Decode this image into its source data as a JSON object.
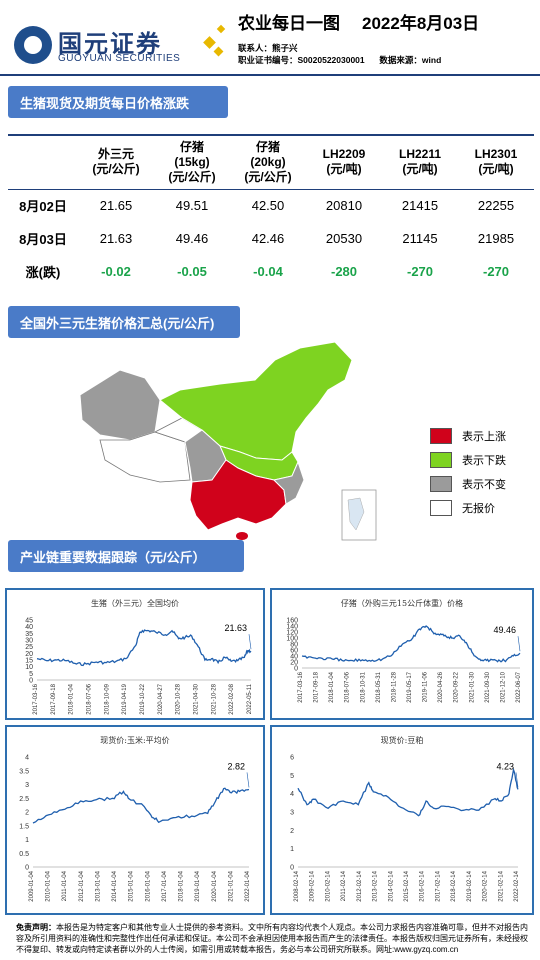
{
  "header": {
    "company_cn": "国元证券",
    "company_en": "GUOYUAN SECURITIES",
    "title": "农业每日一图",
    "date": "2022年8月03日",
    "contact_label": "联系人：",
    "contact": "熊子兴",
    "cert_label": "职业证书编号：",
    "cert": "S0020522030001",
    "source_label": "数据来源：",
    "source": "wind"
  },
  "section1": {
    "title": "生猪现货及期货每日价格涨跌"
  },
  "table": {
    "headers": [
      {
        "lines": [
          "",
          ""
        ]
      },
      {
        "lines": [
          "外三元",
          "(元/公斤)"
        ]
      },
      {
        "lines": [
          "仔猪",
          "(15kg)",
          "(元/公斤)"
        ]
      },
      {
        "lines": [
          "仔猪",
          "(20kg)",
          "(元/公斤)"
        ]
      },
      {
        "lines": [
          "LH2209",
          "(元/吨)"
        ]
      },
      {
        "lines": [
          "LH2211",
          "(元/吨)"
        ]
      },
      {
        "lines": [
          "LH2301",
          "(元/吨)"
        ]
      }
    ],
    "rows": [
      {
        "label": "8月02日",
        "values": [
          "21.65",
          "49.51",
          "42.50",
          "20810",
          "21415",
          "22255"
        ]
      },
      {
        "label": "8月03日",
        "values": [
          "21.63",
          "49.46",
          "42.46",
          "20530",
          "21145",
          "21985"
        ]
      },
      {
        "label": "涨(跌)",
        "values": [
          "-0.02",
          "-0.05",
          "-0.04",
          "-280",
          "-270",
          "-270"
        ]
      }
    ]
  },
  "section2": {
    "title": "全国外三元生猪价格汇总(元/公斤)"
  },
  "map_legend": [
    {
      "label": "表示上涨",
      "color": "#d0021b"
    },
    {
      "label": "表示下跌",
      "color": "#7ed321"
    },
    {
      "label": "表示不变",
      "color": "#9b9b9b"
    },
    {
      "label": "无报价",
      "color": "#ffffff"
    }
  ],
  "section3": {
    "title": "产业链重要数据跟踪（元/公斤）"
  },
  "chart_data": [
    {
      "type": "line",
      "title": "生猪（外三元）全国均价",
      "ylim": [
        0,
        45
      ],
      "yticks": [
        0,
        5,
        10,
        15,
        20,
        25,
        30,
        35,
        40,
        45
      ],
      "xticks": [
        "2017-03-16",
        "2017-09-18",
        "2018-01-04",
        "2018-07-06",
        "2018-10-09",
        "2019-04-19",
        "2019-10-22",
        "2020-04-27",
        "2020-10-28",
        "2021-04-30",
        "2021-10-28",
        "2022-02-08",
        "2022-05-11"
      ],
      "x": [
        "2017-03",
        "2017-06",
        "2017-09",
        "2017-12",
        "2018-03",
        "2018-06",
        "2018-09",
        "2018-12",
        "2019-03",
        "2019-06",
        "2019-09",
        "2019-10",
        "2019-11",
        "2020-01",
        "2020-03",
        "2020-06",
        "2020-08",
        "2020-10",
        "2020-12",
        "2021-02",
        "2021-04",
        "2021-06",
        "2021-08",
        "2021-10",
        "2021-12",
        "2022-02",
        "2022-04",
        "2022-06",
        "2022-07",
        "2022-08"
      ],
      "values": [
        16,
        14.5,
        15,
        14.5,
        12,
        12,
        13.5,
        13,
        14,
        16,
        26,
        34,
        37,
        37,
        36,
        34,
        37,
        31,
        32,
        33,
        25,
        15,
        16,
        13,
        17,
        14,
        14.5,
        17,
        22,
        21.63
      ],
      "annotation": "21.63"
    },
    {
      "type": "line",
      "title": "仔猪（外购三元15公斤体重）价格",
      "ylim": [
        0,
        160
      ],
      "yticks": [
        0,
        20,
        40,
        60,
        80,
        100,
        120,
        140,
        160
      ],
      "xticks": [
        "2017-03-16",
        "2017-09-18",
        "2018-01-04",
        "2018-07-06",
        "2018-10-31",
        "2018-05-31",
        "2018-11-28",
        "2019-05-17",
        "2019-11-06",
        "2020-04-26",
        "2020-09-22",
        "2021-01-30",
        "2021-09-30",
        "2021-12-10",
        "2022-06-07"
      ],
      "x": [
        "2017-03",
        "2017-06",
        "2017-09",
        "2017-12",
        "2018-03",
        "2018-06",
        "2018-09",
        "2018-12",
        "2019-03",
        "2019-06",
        "2019-09",
        "2019-12",
        "2020-02",
        "2020-04",
        "2020-06",
        "2020-08",
        "2020-10",
        "2020-12",
        "2021-02",
        "2021-04",
        "2021-06",
        "2021-08",
        "2021-10",
        "2021-12",
        "2022-02",
        "2022-04",
        "2022-06",
        "2022-08"
      ],
      "values": [
        40,
        35,
        32,
        30,
        25,
        25,
        27,
        26,
        30,
        45,
        80,
        100,
        130,
        140,
        120,
        110,
        105,
        100,
        108,
        85,
        48,
        30,
        25,
        27,
        24,
        27,
        40,
        49.46
      ],
      "annotation": "49.46"
    },
    {
      "type": "line",
      "title": "现货价:玉米:平均价",
      "ylim": [
        0,
        4
      ],
      "yticks": [
        0,
        0.5,
        1,
        1.5,
        2,
        2.5,
        3,
        3.5,
        4
      ],
      "xticks": [
        "2009-01-04",
        "2010-01-04",
        "2011-01-04",
        "2012-01-04",
        "2013-01-04",
        "2014-01-04",
        "2015-01-04",
        "2016-01-04",
        "2017-01-04",
        "2018-01-04",
        "2019-01-04",
        "2020-01-04",
        "2021-01-04",
        "2022-01-04"
      ],
      "x": [
        "2009",
        "2010",
        "2011",
        "2012",
        "2013",
        "2014",
        "2014.7",
        "2015",
        "2016",
        "2016.5",
        "2017",
        "2018",
        "2019",
        "2020",
        "2020.5",
        "2021",
        "2021.5",
        "2022",
        "2022.6"
      ],
      "values": [
        1.6,
        1.9,
        2.1,
        2.4,
        2.45,
        2.5,
        2.75,
        2.5,
        2.2,
        1.8,
        1.65,
        1.8,
        1.85,
        1.95,
        2.4,
        2.85,
        2.7,
        2.75,
        2.82
      ],
      "annotation": "2.82"
    },
    {
      "type": "line",
      "title": "现货价:豆粕",
      "ylim": [
        0,
        6
      ],
      "yticks": [
        0,
        1,
        2,
        3,
        4,
        5,
        6
      ],
      "xticks": [
        "2008-02-14",
        "2009-02-14",
        "2010-02-14",
        "2011-02-14",
        "2012-02-14",
        "2013-02-14",
        "2014-02-14",
        "2015-02-14",
        "2016-02-14",
        "2017-02-14",
        "2018-02-14",
        "2019-02-14",
        "2020-02-14",
        "2021-02-14",
        "2022-02-14"
      ],
      "x": [
        "2008",
        "2008.6",
        "2009",
        "2010",
        "2011",
        "2012",
        "2012.7",
        "2013",
        "2014",
        "2015",
        "2016",
        "2016.5",
        "2017",
        "2018",
        "2019",
        "2020",
        "2021",
        "2021.5",
        "2022",
        "2022.3",
        "2022.6"
      ],
      "values": [
        4.3,
        3.4,
        3.7,
        3.2,
        3.6,
        3.4,
        4.6,
        4.1,
        3.8,
        3.2,
        2.8,
        3.6,
        3.2,
        3.3,
        3.1,
        3.1,
        3.7,
        3.6,
        4.0,
        5.3,
        4.23
      ],
      "annotation": "4.23"
    }
  ],
  "footer": {
    "label": "免责声明：",
    "text": "本报告是为特定客户和其他专业人士提供的参考资料。文中所有内容均代表个人观点。本公司力求报告内容准确可靠，但并不对报告内容及所引用资料的准确性和完整性作出任何承诺和保证。本公司不会承担因使用本报告而产生的法律责任。本报告版权归国元证券所有，未经授权不得复印、转发或向特定读者群以外的人士传阅，如需引用或转载本报告，务必与本公司研究所联系。网址:www.gyzq.com.cn"
  }
}
